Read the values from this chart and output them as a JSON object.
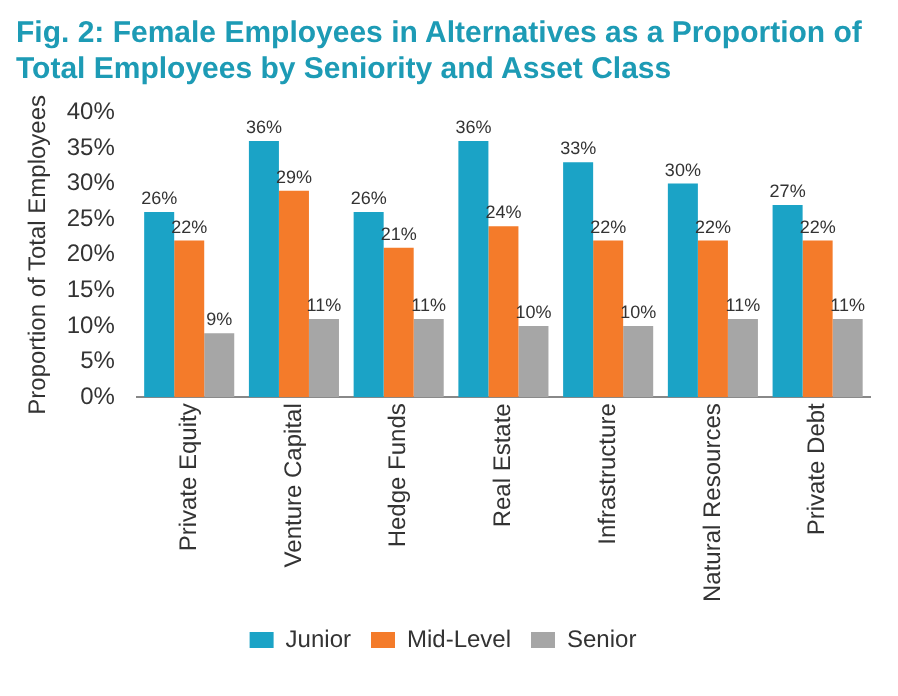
{
  "chart_data": {
    "type": "bar",
    "title": "Fig. 2: Female Employees in Alternatives as a Proportion of Total Employees by Seniority and Asset Class",
    "ylabel": "Proportion of Total Employees",
    "categories": [
      "Private Equity",
      "Venture Capital",
      "Hedge Funds",
      "Real Estate",
      "Infrastructure",
      "Natural Resources",
      "Private Debt"
    ],
    "series": [
      {
        "name": "Junior",
        "color": "#1ba3c6",
        "values": [
          26,
          36,
          26,
          36,
          33,
          30,
          27
        ],
        "value_labels": [
          "26%",
          "36%",
          "26%",
          "36%",
          "33%",
          "30%",
          "27%"
        ]
      },
      {
        "name": "Mid-Level",
        "color": "#f47b2a",
        "values": [
          22,
          29,
          21,
          24,
          22,
          22,
          22
        ],
        "value_labels": [
          "22%",
          "29%",
          "21%",
          "24%",
          "22%",
          "22%",
          "22%"
        ]
      },
      {
        "name": "Senior",
        "color": "#a6a6a6",
        "values": [
          9,
          11,
          11,
          10,
          10,
          11,
          11
        ],
        "value_labels": [
          "9%",
          "11%",
          "11%",
          "10%",
          "10%",
          "11%",
          "11%"
        ]
      }
    ],
    "ylim": [
      0,
      40
    ],
    "yticks": [
      {
        "value": 0,
        "label": "0%"
      },
      {
        "value": 5,
        "label": "5%"
      },
      {
        "value": 10,
        "label": "10%"
      },
      {
        "value": 15,
        "label": "15%"
      },
      {
        "value": 20,
        "label": "20%"
      },
      {
        "value": 25,
        "label": "25%"
      },
      {
        "value": 30,
        "label": "30%"
      },
      {
        "value": 35,
        "label": "35%"
      },
      {
        "value": 40,
        "label": "40%"
      }
    ],
    "grid": false,
    "legend": "bottom"
  }
}
